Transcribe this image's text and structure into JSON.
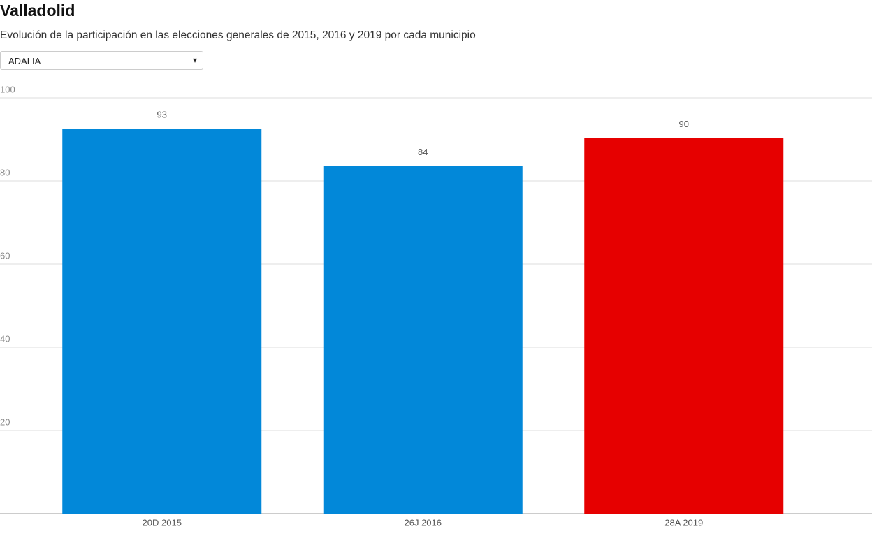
{
  "dropdown": "ADALIA",
  "chart_data": {
    "type": "bar",
    "title": "Valladolid",
    "subtitle": "Evolución de la participación en las elecciones generales de 2015, 2016 y 2019 por cada municipio",
    "categories": [
      "20D 2015",
      "26J 2016",
      "28A 2019"
    ],
    "values": [
      92.6,
      83.6,
      90.3
    ],
    "value_labels": [
      "93",
      "84",
      "90"
    ],
    "colors": [
      "#0288d9",
      "#0288d9",
      "#e60000"
    ],
    "ylim": [
      0,
      100
    ],
    "yticks": [
      20,
      40,
      60,
      80,
      100
    ],
    "grid": true
  }
}
